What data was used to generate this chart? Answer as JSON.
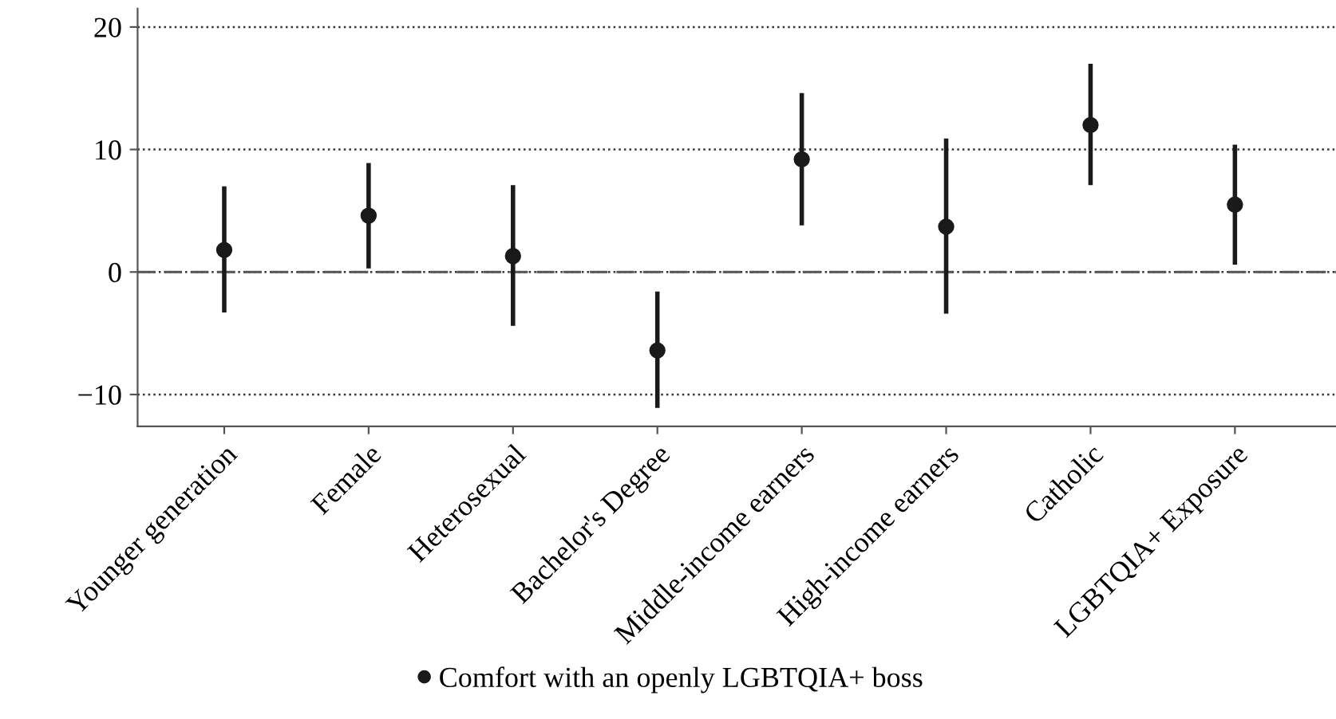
{
  "chart_data": {
    "type": "scatter",
    "categories": [
      "Younger generation",
      "Female",
      "Heterosexual",
      "Bachelor's Degree",
      "Middle-income earners",
      "High-income earners",
      "Catholic",
      "LGBTQIA+ Exposure"
    ],
    "series": [
      {
        "name": "Comfort with an openly LGBTQIA+ boss",
        "color": "#1a1a1a",
        "values": [
          1.8,
          4.6,
          1.3,
          -6.4,
          9.2,
          3.7,
          12.0,
          5.5
        ],
        "errors": [
          [
            -3.3,
            7.0
          ],
          [
            0.3,
            8.9
          ],
          [
            -4.4,
            7.1
          ],
          [
            -11.1,
            -1.6
          ],
          [
            3.8,
            14.6
          ],
          [
            -3.4,
            10.9
          ],
          [
            7.1,
            17.0
          ],
          [
            0.6,
            10.4
          ]
        ]
      }
    ],
    "ylim": [
      -12.6,
      21.5
    ],
    "yticks": [
      -10,
      0,
      10,
      20
    ],
    "grid": "y",
    "marker": "circle",
    "legend": "bottom",
    "ref_lines": [
      {
        "axis": "y",
        "value": 0,
        "line_style": "dashed",
        "color": "#555555"
      }
    ]
  }
}
